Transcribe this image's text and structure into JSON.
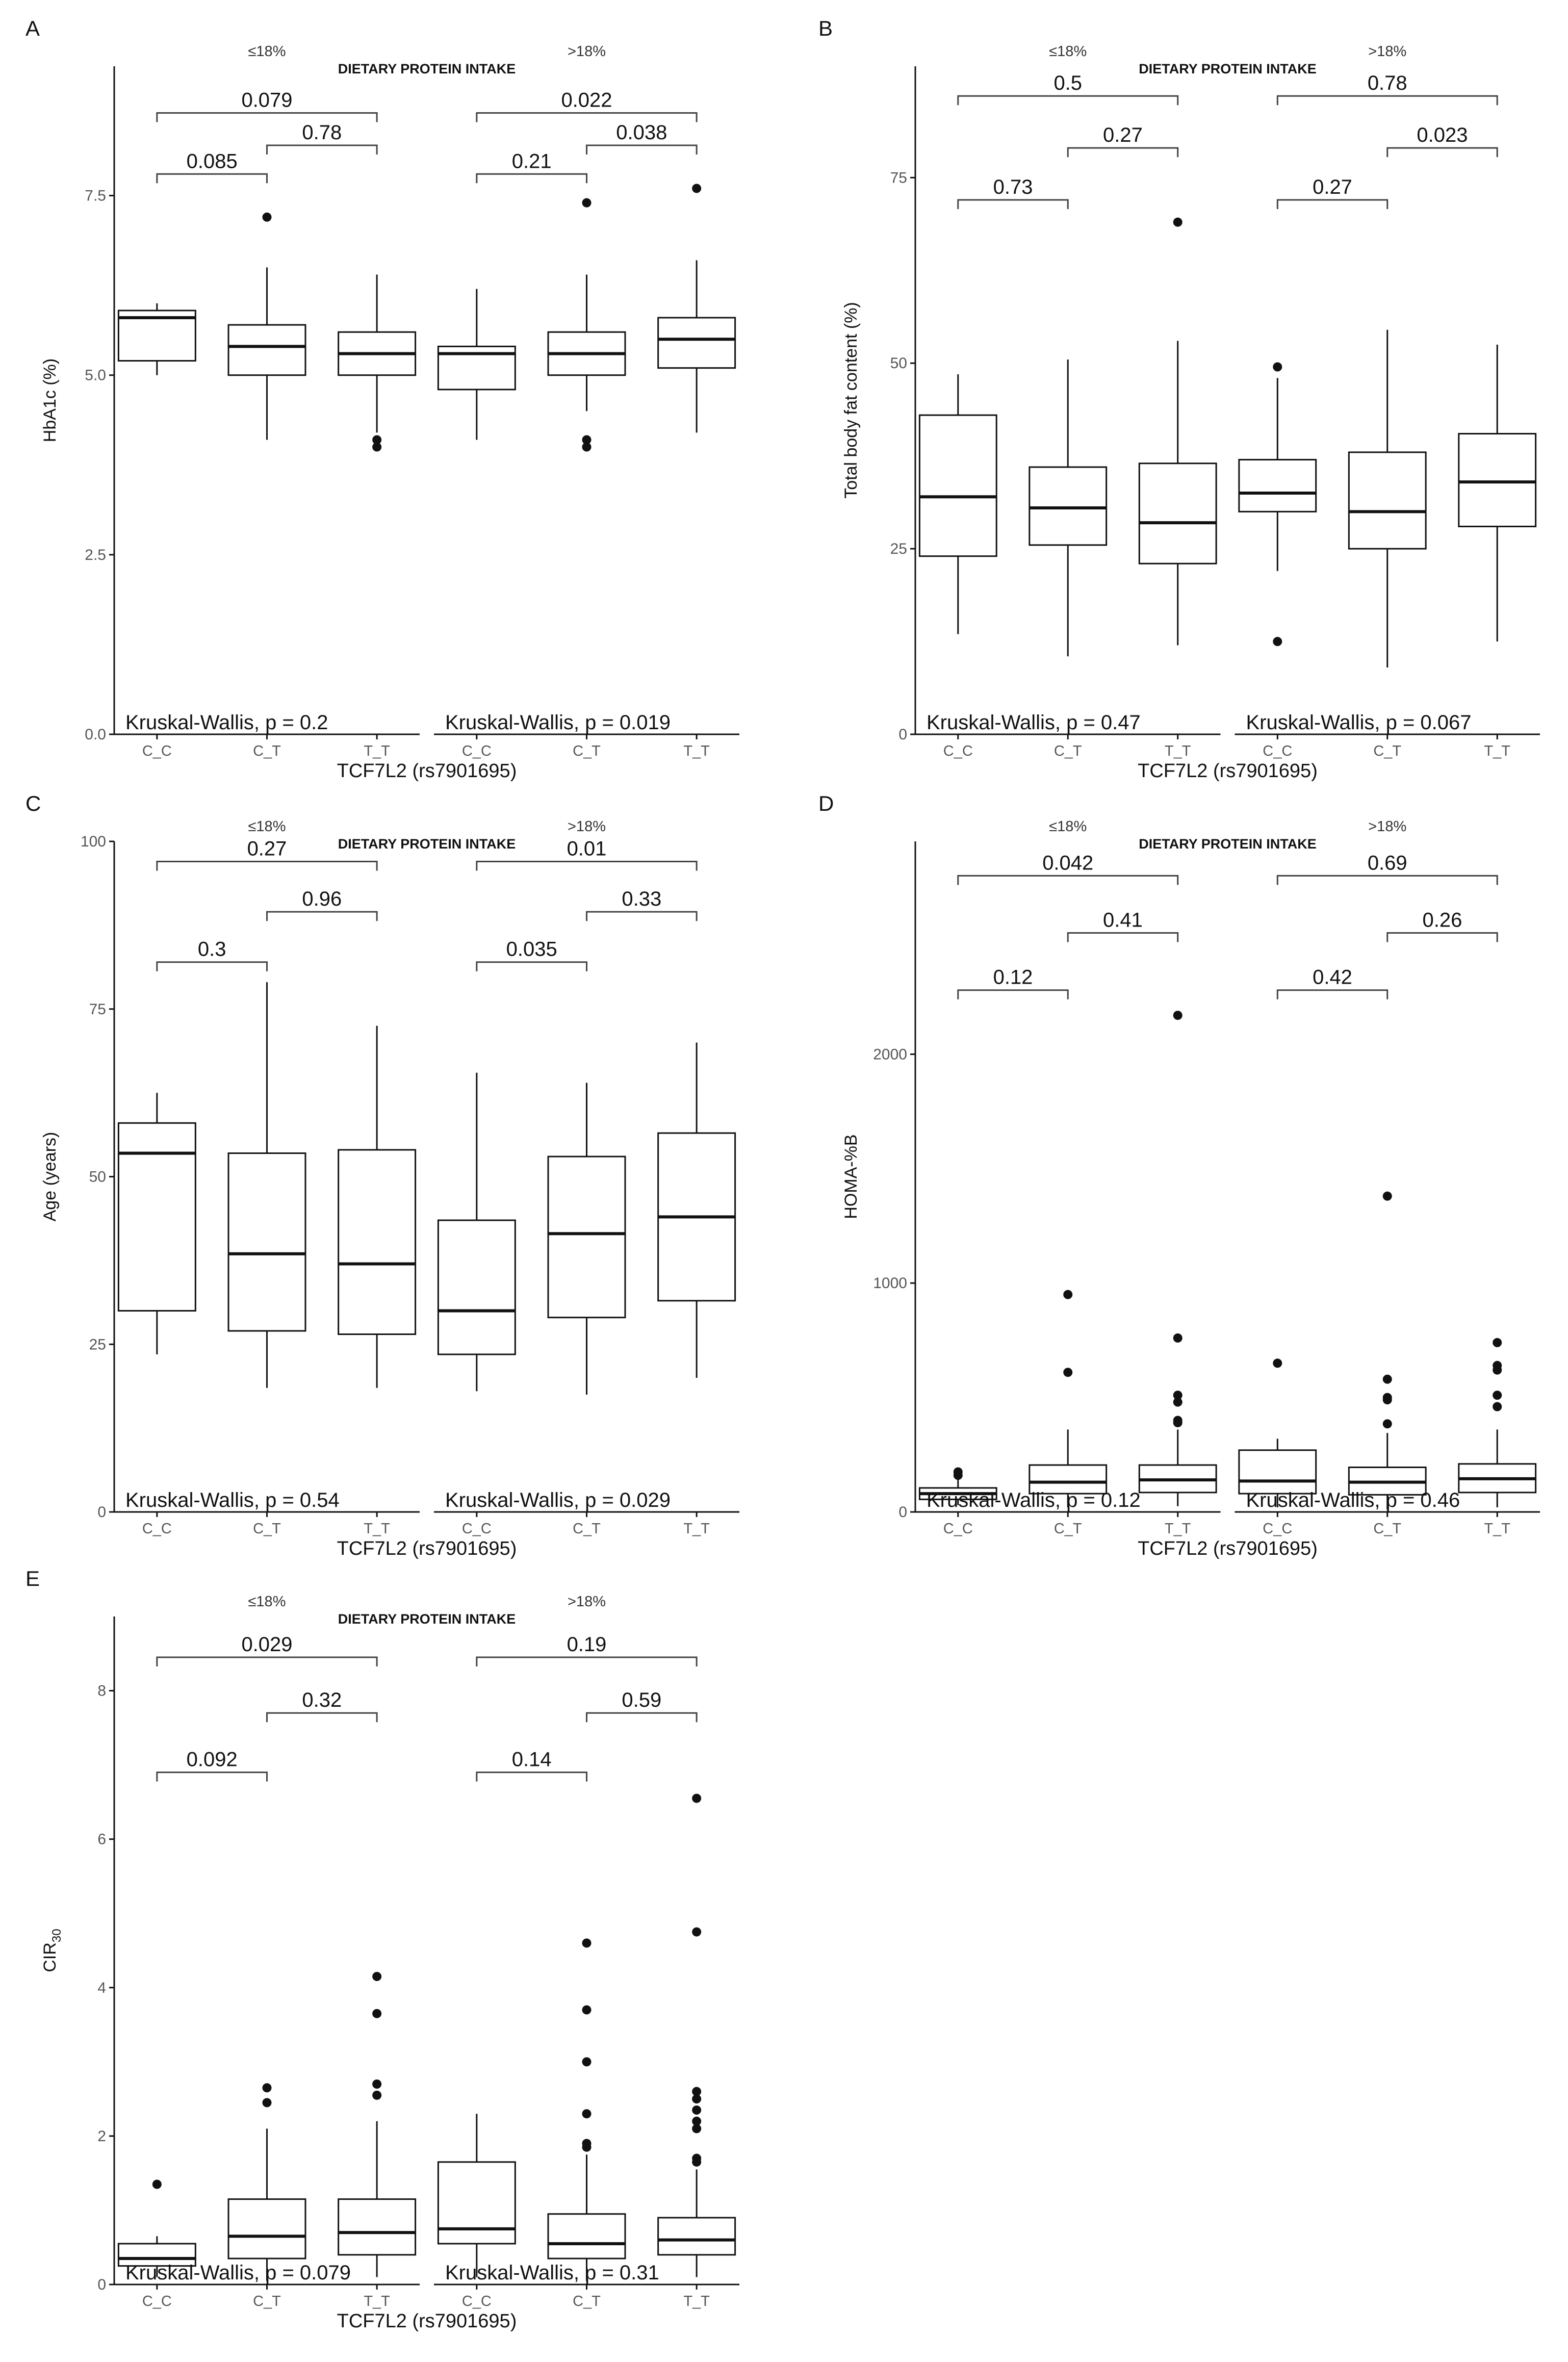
{
  "figure": {
    "bg": "#ffffff",
    "box_color": "#111111"
  },
  "chart_data": [
    {
      "type": "boxplot",
      "panel": "A",
      "title": "DIETARY PROTEIN INTAKE",
      "xlabel": "TCF7L2 (rs7901695)",
      "ylabel": "HbA1c (%)",
      "ylim": [
        0,
        9.3
      ],
      "yticks": [
        "0.0",
        "2.5",
        "5.0",
        "7.5"
      ],
      "ytick_values": [
        0,
        2.5,
        5,
        7.5
      ],
      "categories": [
        "C_C",
        "C_T",
        "T_T"
      ],
      "facets": [
        {
          "name": "≤18%",
          "boxes": [
            {
              "genotype": "C_C",
              "q1": 5.2,
              "median": 5.8,
              "q3": 5.9,
              "whisker_low": 5.0,
              "whisker_high": 6.0,
              "outliers": []
            },
            {
              "genotype": "C_T",
              "q1": 5.0,
              "median": 5.4,
              "q3": 5.7,
              "whisker_low": 4.1,
              "whisker_high": 6.5,
              "outliers": [
                7.2
              ]
            },
            {
              "genotype": "T_T",
              "q1": 5.0,
              "median": 5.3,
              "q3": 5.6,
              "whisker_low": 4.2,
              "whisker_high": 6.4,
              "outliers": [
                4.1,
                4.0
              ]
            }
          ],
          "comparisons": [
            {
              "pair": [
                "C_C",
                "T_T"
              ],
              "p": "0.079",
              "y": 8.65
            },
            {
              "pair": [
                "C_T",
                "T_T"
              ],
              "p": "0.78",
              "y": 8.2
            },
            {
              "pair": [
                "C_C",
                "C_T"
              ],
              "p": "0.085",
              "y": 7.8
            }
          ],
          "kruskal": "Kruskal-Wallis, p = 0.2"
        },
        {
          "name": ">18%",
          "boxes": [
            {
              "genotype": "C_C",
              "q1": 4.8,
              "median": 5.3,
              "q3": 5.4,
              "whisker_low": 4.1,
              "whisker_high": 6.2,
              "outliers": []
            },
            {
              "genotype": "C_T",
              "q1": 5.0,
              "median": 5.3,
              "q3": 5.6,
              "whisker_low": 4.5,
              "whisker_high": 6.4,
              "outliers": [
                7.4,
                4.1,
                4.0
              ]
            },
            {
              "genotype": "T_T",
              "q1": 5.1,
              "median": 5.5,
              "q3": 5.8,
              "whisker_low": 4.2,
              "whisker_high": 6.6,
              "outliers": [
                7.6
              ]
            }
          ],
          "comparisons": [
            {
              "pair": [
                "C_C",
                "T_T"
              ],
              "p": "0.022",
              "y": 8.65
            },
            {
              "pair": [
                "C_T",
                "T_T"
              ],
              "p": "0.038",
              "y": 8.2
            },
            {
              "pair": [
                "C_C",
                "C_T"
              ],
              "p": "0.21",
              "y": 7.8
            }
          ],
          "kruskal": "Kruskal-Wallis, p = 0.019"
        }
      ]
    },
    {
      "type": "boxplot",
      "panel": "B",
      "title": "DIETARY PROTEIN INTAKE",
      "xlabel": "TCF7L2 (rs7901695)",
      "ylabel": "Total body fat content (%)",
      "ylim": [
        0,
        90
      ],
      "yticks": [
        "0",
        "25",
        "50",
        "75"
      ],
      "ytick_values": [
        0,
        25,
        50,
        75
      ],
      "categories": [
        "C_C",
        "C_T",
        "T_T"
      ],
      "facets": [
        {
          "name": "≤18%",
          "boxes": [
            {
              "genotype": "C_C",
              "q1": 24,
              "median": 32,
              "q3": 43,
              "whisker_low": 13.5,
              "whisker_high": 48.5,
              "outliers": []
            },
            {
              "genotype": "C_T",
              "q1": 25.5,
              "median": 30.5,
              "q3": 36,
              "whisker_low": 10.5,
              "whisker_high": 50.5,
              "outliers": []
            },
            {
              "genotype": "T_T",
              "q1": 23,
              "median": 28.5,
              "q3": 36.5,
              "whisker_low": 12,
              "whisker_high": 53,
              "outliers": [
                69
              ]
            }
          ],
          "comparisons": [
            {
              "pair": [
                "C_C",
                "T_T"
              ],
              "p": "0.5",
              "y": 86
            },
            {
              "pair": [
                "C_T",
                "T_T"
              ],
              "p": "0.27",
              "y": 79
            },
            {
              "pair": [
                "C_C",
                "C_T"
              ],
              "p": "0.73",
              "y": 72
            }
          ],
          "kruskal": "Kruskal-Wallis, p = 0.47"
        },
        {
          "name": ">18%",
          "boxes": [
            {
              "genotype": "C_C",
              "q1": 30,
              "median": 32.5,
              "q3": 37,
              "whisker_low": 22,
              "whisker_high": 48,
              "outliers": [
                49.5,
                12.5
              ]
            },
            {
              "genotype": "C_T",
              "q1": 25,
              "median": 30,
              "q3": 38,
              "whisker_low": 9,
              "whisker_high": 54.5,
              "outliers": []
            },
            {
              "genotype": "T_T",
              "q1": 28,
              "median": 34,
              "q3": 40.5,
              "whisker_low": 12.5,
              "whisker_high": 52.5,
              "outliers": []
            }
          ],
          "comparisons": [
            {
              "pair": [
                "C_C",
                "T_T"
              ],
              "p": "0.78",
              "y": 86
            },
            {
              "pair": [
                "C_T",
                "T_T"
              ],
              "p": "0.023",
              "y": 79
            },
            {
              "pair": [
                "C_C",
                "C_T"
              ],
              "p": "0.27",
              "y": 72
            }
          ],
          "kruskal": "Kruskal-Wallis, p = 0.067"
        }
      ]
    },
    {
      "type": "boxplot",
      "panel": "C",
      "title": "DIETARY PROTEIN INTAKE",
      "xlabel": "TCF7L2 (rs7901695)",
      "ylabel": "Age (years)",
      "ylim": [
        0,
        100
      ],
      "yticks": [
        "0",
        "25",
        "50",
        "75",
        "100"
      ],
      "ytick_values": [
        0,
        25,
        50,
        75,
        100
      ],
      "categories": [
        "C_C",
        "C_T",
        "T_T"
      ],
      "facets": [
        {
          "name": "≤18%",
          "boxes": [
            {
              "genotype": "C_C",
              "q1": 30,
              "median": 53.5,
              "q3": 58,
              "whisker_low": 23.5,
              "whisker_high": 62.5,
              "outliers": []
            },
            {
              "genotype": "C_T",
              "q1": 27,
              "median": 38.5,
              "q3": 53.5,
              "whisker_low": 18.5,
              "whisker_high": 79,
              "outliers": []
            },
            {
              "genotype": "T_T",
              "q1": 26.5,
              "median": 37,
              "q3": 54,
              "whisker_low": 18.5,
              "whisker_high": 72.5,
              "outliers": []
            }
          ],
          "comparisons": [
            {
              "pair": [
                "C_C",
                "T_T"
              ],
              "p": "0.27",
              "y": 97
            },
            {
              "pair": [
                "C_T",
                "T_T"
              ],
              "p": "0.96",
              "y": 89.5
            },
            {
              "pair": [
                "C_C",
                "C_T"
              ],
              "p": "0.3",
              "y": 82
            }
          ],
          "kruskal": "Kruskal-Wallis, p = 0.54"
        },
        {
          "name": ">18%",
          "boxes": [
            {
              "genotype": "C_C",
              "q1": 23.5,
              "median": 30,
              "q3": 43.5,
              "whisker_low": 18,
              "whisker_high": 65.5,
              "outliers": []
            },
            {
              "genotype": "C_T",
              "q1": 29,
              "median": 41.5,
              "q3": 53,
              "whisker_low": 17.5,
              "whisker_high": 64,
              "outliers": []
            },
            {
              "genotype": "T_T",
              "q1": 31.5,
              "median": 44,
              "q3": 56.5,
              "whisker_low": 20,
              "whisker_high": 70,
              "outliers": []
            }
          ],
          "comparisons": [
            {
              "pair": [
                "C_C",
                "T_T"
              ],
              "p": "0.01",
              "y": 97
            },
            {
              "pair": [
                "C_T",
                "T_T"
              ],
              "p": "0.33",
              "y": 89.5
            },
            {
              "pair": [
                "C_C",
                "C_T"
              ],
              "p": "0.035",
              "y": 82
            }
          ],
          "kruskal": "Kruskal-Wallis, p = 0.029"
        }
      ]
    },
    {
      "type": "boxplot",
      "panel": "D",
      "title": "DIETARY PROTEIN INTAKE",
      "xlabel": "TCF7L2 (rs7901695)",
      "ylabel": "HOMA-%B",
      "ylim": [
        0,
        2930
      ],
      "yticks": [
        "0",
        "1000",
        "2000"
      ],
      "ytick_values": [
        0,
        1000,
        2000
      ],
      "categories": [
        "C_C",
        "C_T",
        "T_T"
      ],
      "facets": [
        {
          "name": "≤18%",
          "boxes": [
            {
              "genotype": "C_C",
              "q1": 55,
              "median": 80,
              "q3": 105,
              "whisker_low": 30,
              "whisker_high": 140,
              "outliers": [
                175,
                160
              ]
            },
            {
              "genotype": "C_T",
              "q1": 80,
              "median": 130,
              "q3": 205,
              "whisker_low": 20,
              "whisker_high": 360,
              "outliers": [
                950,
                610
              ]
            },
            {
              "genotype": "T_T",
              "q1": 85,
              "median": 140,
              "q3": 205,
              "whisker_low": 25,
              "whisker_high": 360,
              "outliers": [
                2170,
                760,
                510,
                480,
                400,
                390
              ]
            }
          ],
          "comparisons": [
            {
              "pair": [
                "C_C",
                "T_T"
              ],
              "p": "0.042",
              "y": 2780
            },
            {
              "pair": [
                "C_T",
                "T_T"
              ],
              "p": "0.41",
              "y": 2530
            },
            {
              "pair": [
                "C_C",
                "C_T"
              ],
              "p": "0.12",
              "y": 2280
            }
          ],
          "kruskal": "Kruskal-Wallis, p = 0.12"
        },
        {
          "name": ">18%",
          "boxes": [
            {
              "genotype": "C_C",
              "q1": 80,
              "median": 135,
              "q3": 270,
              "whisker_low": 20,
              "whisker_high": 320,
              "outliers": [
                650
              ]
            },
            {
              "genotype": "C_T",
              "q1": 75,
              "median": 130,
              "q3": 195,
              "whisker_low": 10,
              "whisker_high": 345,
              "outliers": [
                1380,
                580,
                500,
                490,
                385
              ]
            },
            {
              "genotype": "T_T",
              "q1": 85,
              "median": 145,
              "q3": 210,
              "whisker_low": 20,
              "whisker_high": 360,
              "outliers": [
                740,
                640,
                620,
                510,
                460
              ]
            }
          ],
          "comparisons": [
            {
              "pair": [
                "C_C",
                "T_T"
              ],
              "p": "0.69",
              "y": 2780
            },
            {
              "pair": [
                "C_T",
                "T_T"
              ],
              "p": "0.26",
              "y": 2530
            },
            {
              "pair": [
                "C_C",
                "C_T"
              ],
              "p": "0.42",
              "y": 2280
            }
          ],
          "kruskal": "Kruskal-Wallis, p = 0.46"
        }
      ]
    },
    {
      "type": "boxplot",
      "panel": "E",
      "title": "DIETARY PROTEIN INTAKE",
      "xlabel": "TCF7L2 (rs7901695)",
      "ylabel": "CIR30",
      "ylim": [
        0,
        9.0
      ],
      "yticks": [
        "0",
        "2",
        "4",
        "6",
        "8"
      ],
      "ytick_values": [
        0,
        2,
        4,
        6,
        8
      ],
      "categories": [
        "C_C",
        "C_T",
        "T_T"
      ],
      "facets": [
        {
          "name": "≤18%",
          "boxes": [
            {
              "genotype": "C_C",
              "q1": 0.25,
              "median": 0.35,
              "q3": 0.55,
              "whisker_low": 0.1,
              "whisker_high": 0.65,
              "outliers": [
                1.35
              ]
            },
            {
              "genotype": "C_T",
              "q1": 0.35,
              "median": 0.65,
              "q3": 1.15,
              "whisker_low": 0.05,
              "whisker_high": 2.1,
              "outliers": [
                2.65,
                2.45
              ]
            },
            {
              "genotype": "T_T",
              "q1": 0.4,
              "median": 0.7,
              "q3": 1.15,
              "whisker_low": 0.1,
              "whisker_high": 2.2,
              "outliers": [
                4.15,
                3.65,
                2.7,
                2.55
              ]
            }
          ],
          "comparisons": [
            {
              "pair": [
                "C_C",
                "T_T"
              ],
              "p": "0.029",
              "y": 8.45
            },
            {
              "pair": [
                "C_T",
                "T_T"
              ],
              "p": "0.32",
              "y": 7.7
            },
            {
              "pair": [
                "C_C",
                "C_T"
              ],
              "p": "0.092",
              "y": 6.9
            }
          ],
          "kruskal": "Kruskal-Wallis, p = 0.079"
        },
        {
          "name": ">18%",
          "boxes": [
            {
              "genotype": "C_C",
              "q1": 0.55,
              "median": 0.75,
              "q3": 1.65,
              "whisker_low": 0.1,
              "whisker_high": 2.3,
              "outliers": []
            },
            {
              "genotype": "C_T",
              "q1": 0.35,
              "median": 0.55,
              "q3": 0.95,
              "whisker_low": 0.05,
              "whisker_high": 1.75,
              "outliers": [
                4.6,
                3.7,
                3.0,
                2.3,
                1.9,
                1.85
              ]
            },
            {
              "genotype": "T_T",
              "q1": 0.4,
              "median": 0.6,
              "q3": 0.9,
              "whisker_low": 0.1,
              "whisker_high": 1.55,
              "outliers": [
                6.55,
                4.75,
                2.6,
                2.5,
                2.35,
                2.2,
                2.1,
                1.7,
                1.65
              ]
            }
          ],
          "comparisons": [
            {
              "pair": [
                "C_C",
                "T_T"
              ],
              "p": "0.19",
              "y": 8.45
            },
            {
              "pair": [
                "C_T",
                "T_T"
              ],
              "p": "0.59",
              "y": 7.7
            },
            {
              "pair": [
                "C_C",
                "C_T"
              ],
              "p": "0.14",
              "y": 6.9
            }
          ],
          "kruskal": "Kruskal-Wallis, p = 0.31"
        }
      ]
    }
  ]
}
